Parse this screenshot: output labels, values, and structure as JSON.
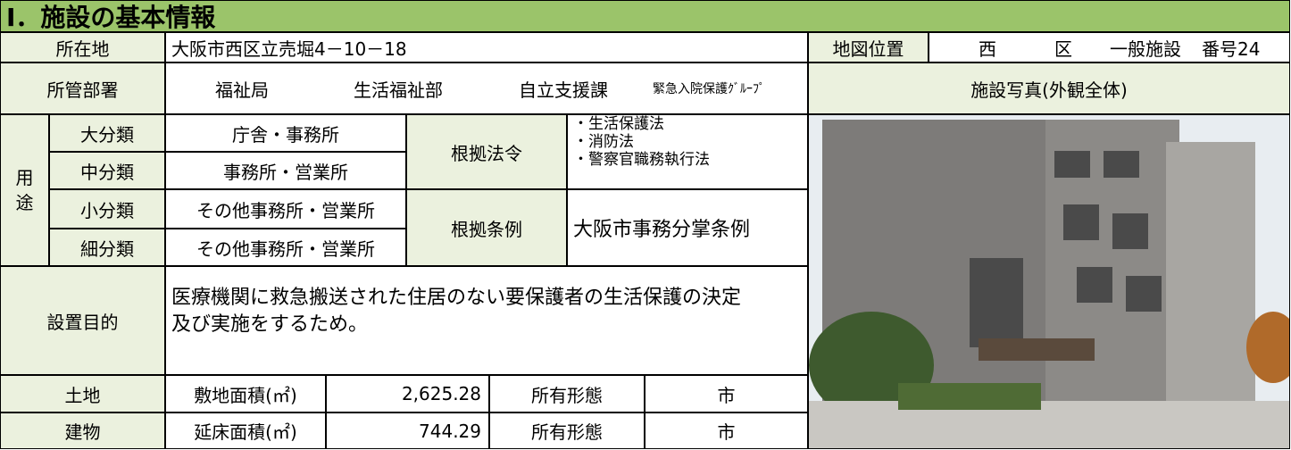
{
  "header": {
    "title": "Ⅰ．施設の基本情報"
  },
  "location": {
    "label": "所在地",
    "value": "大阪市西区立売堀4－10－18"
  },
  "map": {
    "label": "地図位置",
    "ward": "西",
    "ward_suffix": "区",
    "category": "一般施設",
    "number": "番号24"
  },
  "department": {
    "label": "所管部署",
    "bureau": "福祉局",
    "division": "生活福祉部",
    "section": "自立支援課",
    "group": "緊急入院保護ｸﾞﾙｰﾌﾟ"
  },
  "photo": {
    "label": "施設写真(外観全体)"
  },
  "usage": {
    "label": "用途",
    "rows": [
      [
        "大分類",
        "庁舎・事務所"
      ],
      [
        "中分類",
        "事務所・営業所"
      ],
      [
        "小分類",
        "その他事務所・営業所"
      ],
      [
        "細分類",
        "その他事務所・営業所"
      ]
    ]
  },
  "basis": {
    "law_label": "根拠法令",
    "laws": [
      "・生活保護法",
      "・消防法",
      "・警察官職務執行法"
    ],
    "ordinance_label": "根拠条例",
    "ordinance": "大阪市事務分掌条例"
  },
  "purpose": {
    "label": "設置目的",
    "lines": [
      "医療機関に救急搬送された住居のない要保護者の生活保護の決定",
      "及び実施をするため。"
    ]
  },
  "land": {
    "label": "土地",
    "area_label": "敷地面積(㎡)",
    "area": "2,625.28",
    "ownership_label": "所有形態",
    "ownership": "市"
  },
  "building": {
    "label": "建物",
    "area_label": "延床面積(㎡)",
    "area": "744.29",
    "ownership_label": "所有形態",
    "ownership": "市"
  }
}
